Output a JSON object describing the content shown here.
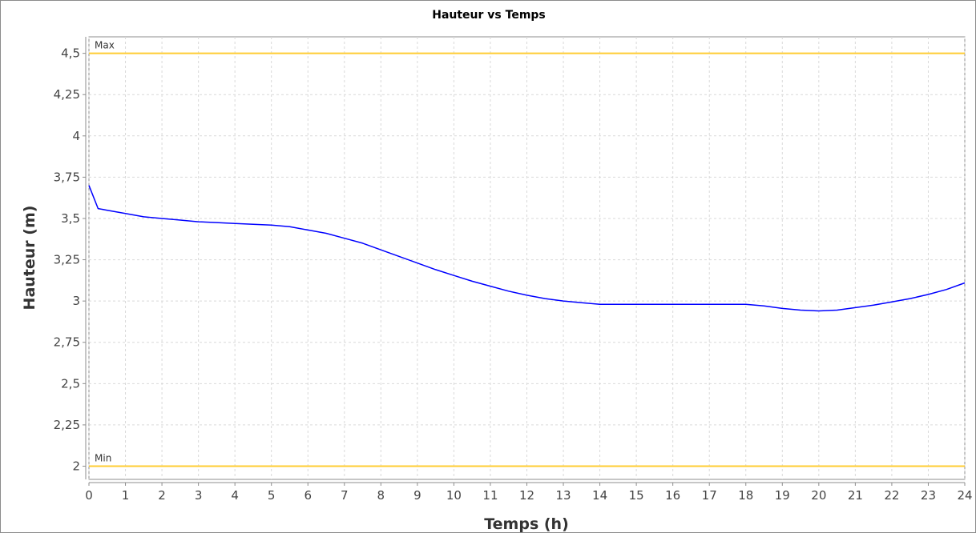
{
  "chart_data": {
    "type": "line",
    "title": "Hauteur vs Temps",
    "xlabel": "Temps (h)",
    "ylabel": "Hauteur (m)",
    "xlim": [
      0,
      24
    ],
    "ylim": [
      1.92,
      4.6
    ],
    "x_ticks": [
      0,
      1,
      2,
      3,
      4,
      5,
      6,
      7,
      8,
      9,
      10,
      11,
      12,
      13,
      14,
      15,
      16,
      17,
      18,
      19,
      20,
      21,
      22,
      23,
      24
    ],
    "x_tick_labels": [
      "0",
      "1",
      "2",
      "3",
      "4",
      "5",
      "6",
      "7",
      "8",
      "9",
      "10",
      "11",
      "12",
      "13",
      "14",
      "15",
      "16",
      "17",
      "18",
      "19",
      "20",
      "21",
      "22",
      "23",
      "24"
    ],
    "y_ticks": [
      2,
      2.25,
      2.5,
      2.75,
      3,
      3.25,
      3.5,
      3.75,
      4,
      4.25,
      4.5
    ],
    "y_tick_labels": [
      "2",
      "2,25",
      "2,5",
      "2,75",
      "3",
      "3,25",
      "3,5",
      "3,75",
      "4",
      "4,25",
      "4,5"
    ],
    "grid": true,
    "series": [
      {
        "color": "#0000ff",
        "x": [
          0,
          0.25,
          0.5,
          1,
          1.5,
          2,
          2.5,
          3,
          3.5,
          4,
          4.5,
          5,
          5.5,
          6,
          6.5,
          7,
          7.5,
          8,
          8.5,
          9,
          9.5,
          10,
          10.5,
          11,
          11.5,
          12,
          12.5,
          13,
          13.5,
          14,
          15,
          16,
          17,
          18,
          18.5,
          19,
          19.5,
          20,
          20.5,
          21,
          21.5,
          22,
          22.5,
          23,
          23.5,
          24
        ],
        "y": [
          3.7,
          3.56,
          3.55,
          3.53,
          3.51,
          3.5,
          3.49,
          3.48,
          3.475,
          3.47,
          3.465,
          3.46,
          3.45,
          3.43,
          3.41,
          3.38,
          3.35,
          3.31,
          3.27,
          3.23,
          3.19,
          3.155,
          3.12,
          3.09,
          3.06,
          3.035,
          3.015,
          3.0,
          2.99,
          2.98,
          2.98,
          2.98,
          2.98,
          2.98,
          2.97,
          2.955,
          2.945,
          2.94,
          2.945,
          2.96,
          2.975,
          2.995,
          3.015,
          3.04,
          3.07,
          3.11
        ]
      }
    ],
    "reference_lines": [
      {
        "label": "Max",
        "y": 4.5,
        "color": "#ffcc33"
      },
      {
        "label": "Min",
        "y": 2.0,
        "color": "#ffcc33"
      }
    ]
  }
}
